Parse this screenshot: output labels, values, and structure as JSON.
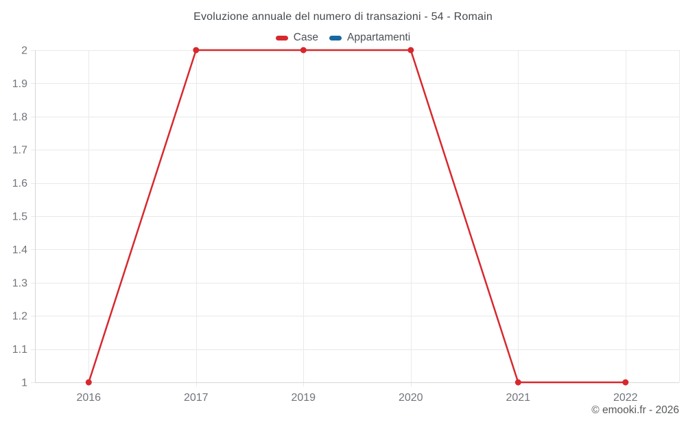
{
  "title": "Evoluzione annuale del numero di transazioni - 54 - Romain",
  "legend": {
    "items": [
      {
        "label": "Case",
        "color": "#d7282d"
      },
      {
        "label": "Appartamenti",
        "color": "#17699f"
      }
    ]
  },
  "footer": {
    "credit": "© emooki.fr - 2026"
  },
  "colors": {
    "series_case": "#d7282d",
    "series_appartamenti": "#17699f",
    "grid": "#e9e9e9",
    "axis": "#d7d7d7",
    "tick_label": "#70747a",
    "title_text": "#45494d"
  },
  "chart_data": {
    "type": "line",
    "title": "Evoluzione annuale del numero di transazioni - 54 - Romain",
    "categories": [
      "2016",
      "2017",
      "2019",
      "2020",
      "2021",
      "2022"
    ],
    "series": [
      {
        "name": "Case",
        "color": "#d7282d",
        "values": [
          1,
          2,
          2,
          2,
          1,
          1
        ]
      },
      {
        "name": "Appartamenti",
        "color": "#17699f",
        "values": []
      }
    ],
    "xlabel": "",
    "ylabel": "",
    "ylim": [
      1,
      2
    ],
    "yticks": [
      1,
      1.1,
      1.2,
      1.3,
      1.4,
      1.5,
      1.6,
      1.7,
      1.8,
      1.9,
      2
    ],
    "ytick_labels": [
      "1",
      "1.1",
      "1.2",
      "1.3",
      "1.4",
      "1.5",
      "1.6",
      "1.7",
      "1.8",
      "1.9",
      "2"
    ],
    "grid": true,
    "legend_position": "top",
    "markers": true
  }
}
